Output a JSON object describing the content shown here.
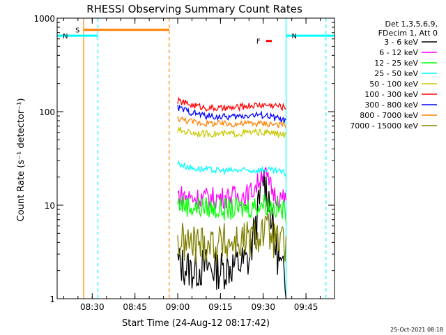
{
  "chart_data": {
    "type": "line",
    "title": "RHESSI Observing Summary Count Rates",
    "xlabel": "Start Time (24-Aug-12 08:17:42)",
    "ylabel": "Count Rate (s⁻¹ detector⁻¹)",
    "y_scale": "log",
    "ylim": [
      1,
      1000
    ],
    "xlim": [
      "08:17:42",
      "09:55:00"
    ],
    "x_ticks": [
      "08:30",
      "08:45",
      "09:00",
      "09:15",
      "09:30",
      "09:45"
    ],
    "y_ticks": [
      "1",
      "10",
      "100",
      "1000"
    ],
    "legend_header": [
      "Det 1,3,5,6,9,",
      "FDecim 1, Att 0"
    ],
    "legend_position": "right",
    "footer_date": "25-Oct-2021 08:18",
    "series": [
      {
        "name": "3 - 6 keV",
        "color": "#000000",
        "x": [
          "09:00",
          "09:05",
          "09:10",
          "09:15",
          "09:20",
          "09:25",
          "09:28",
          "09:30",
          "09:32",
          "09:34",
          "09:36",
          "09:38"
        ],
        "y": [
          2.4,
          2.0,
          2.2,
          2.0,
          2.3,
          2.5,
          8,
          20,
          12,
          4,
          2.2,
          1.5
        ]
      },
      {
        "name": "6 - 12 keV",
        "color": "#ff00ff",
        "x": [
          "09:00",
          "09:05",
          "09:10",
          "09:15",
          "09:20",
          "09:25",
          "09:28",
          "09:30",
          "09:32",
          "09:34",
          "09:36",
          "09:38"
        ],
        "y": [
          13,
          12,
          12,
          12,
          12.5,
          13,
          17,
          24,
          17,
          13,
          12,
          11
        ]
      },
      {
        "name": "12 - 25 keV",
        "color": "#00ff00",
        "x": [
          "09:00",
          "09:05",
          "09:10",
          "09:15",
          "09:20",
          "09:25",
          "09:28",
          "09:30",
          "09:32",
          "09:34",
          "09:36",
          "09:38"
        ],
        "y": [
          10.5,
          9.5,
          9.5,
          9,
          9,
          9.5,
          10,
          10.5,
          10,
          9.5,
          9,
          8.5
        ]
      },
      {
        "name": "25 - 50 keV",
        "color": "#00ffff",
        "x": [
          "09:00",
          "09:05",
          "09:10",
          "09:15",
          "09:20",
          "09:25",
          "09:30",
          "09:35",
          "09:38"
        ],
        "y": [
          28,
          25,
          24,
          23.5,
          23.5,
          23.5,
          24,
          23,
          22
        ]
      },
      {
        "name": "50 - 100 keV",
        "color": "#c8c800",
        "x": [
          "09:00",
          "09:05",
          "09:10",
          "09:15",
          "09:20",
          "09:25",
          "09:30",
          "09:35",
          "09:38"
        ],
        "y": [
          63,
          60,
          58,
          58,
          58,
          60,
          60,
          58,
          56
        ]
      },
      {
        "name": "100 - 300 keV",
        "color": "#ff0000",
        "x": [
          "09:00",
          "09:05",
          "09:10",
          "09:15",
          "09:20",
          "09:25",
          "09:30",
          "09:35",
          "09:38"
        ],
        "y": [
          130,
          118,
          110,
          108,
          110,
          116,
          118,
          116,
          110
        ]
      },
      {
        "name": "300 - 800 keV",
        "color": "#0000ff",
        "x": [
          "09:00",
          "09:05",
          "09:10",
          "09:15",
          "09:20",
          "09:25",
          "09:30",
          "09:35",
          "09:38"
        ],
        "y": [
          110,
          98,
          90,
          88,
          88,
          92,
          92,
          85,
          78
        ]
      },
      {
        "name": "800 - 7000 keV",
        "color": "#ff8000",
        "x": [
          "09:00",
          "09:05",
          "09:10",
          "09:15",
          "09:20",
          "09:25",
          "09:30",
          "09:35",
          "09:38"
        ],
        "y": [
          85,
          78,
          75,
          74,
          74,
          75,
          75,
          73,
          70
        ]
      },
      {
        "name": "7000 - 15000 keV",
        "color": "#808000",
        "x": [
          "09:00",
          "09:05",
          "09:10",
          "09:15",
          "09:20",
          "09:25",
          "09:28",
          "09:30",
          "09:32",
          "09:34",
          "09:36",
          "09:38"
        ],
        "y": [
          4,
          3.8,
          4,
          3.9,
          4,
          4.2,
          4.8,
          5.3,
          5,
          4.2,
          3.8,
          3.6
        ]
      }
    ],
    "state_bars": [
      {
        "label": "S",
        "color": "#ff8000",
        "solid_from": "08:27:00",
        "solid_to": "08:57:00",
        "y": 750
      },
      {
        "label": "N",
        "color": "#00ffff",
        "solid_from": "08:17:42",
        "solid_to": "08:32:00",
        "y": 650
      },
      {
        "label": "N",
        "color": "#00ffff",
        "solid_from": "09:38:00",
        "solid_to": "09:55:00",
        "y": 650
      },
      {
        "label": "F",
        "color": "#ff0000",
        "solid_from": "09:31:00",
        "solid_to": "09:33:00",
        "y": 570
      }
    ],
    "markers": [
      {
        "label": "",
        "color": "#ff8000",
        "time": "08:27:00",
        "style": "solid"
      },
      {
        "label": "",
        "color": "#00ffff",
        "time": "08:32:00",
        "style": "dashed"
      },
      {
        "label": "",
        "color": "#ff8000",
        "time": "08:57:00",
        "style": "dashed"
      },
      {
        "label": "",
        "color": "#00ffff",
        "time": "09:38:00",
        "style": "solid"
      },
      {
        "label": "",
        "color": "#00ffff",
        "time": "09:52:00",
        "style": "dashed"
      }
    ]
  }
}
